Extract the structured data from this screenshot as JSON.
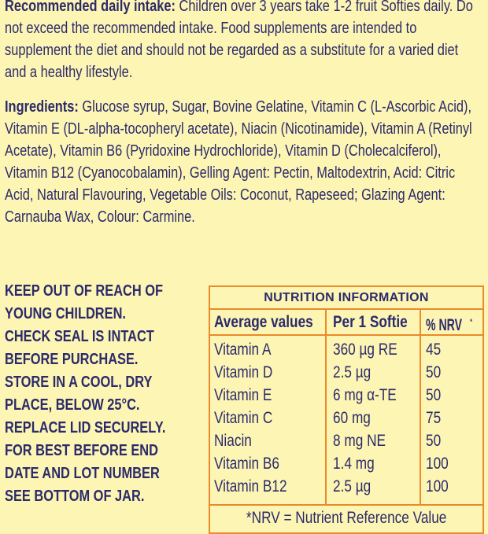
{
  "intake": {
    "label": "Recommended daily intake:",
    "text": " Children over 3 years take 1-2 fruit Softies daily. Do not exceed the recommended intake. Food supplements are intended to supplement the diet and should not be regarded as a substitute for a varied diet and a healthy lifestyle."
  },
  "ingredients": {
    "label": "Ingredients:",
    "text": " Glucose syrup, Sugar, Bovine Gelatine, Vitamin C (L-Ascorbic Acid), Vitamin E (DL-alpha-tocopheryl acetate), Niacin (Nicotinamide), Vitamin A (Retinyl Acetate), Vitamin B6 (Pyridoxine Hydrochloride), Vitamin D (Cholecalciferol), Vitamin B12 (Cyanocobalamin), Gelling Agent: Pectin, Maltodextrin, Acid: Citric Acid, Natural Flavouring, Vegetable  Oils: Coconut, Rapeseed; Glazing Agent: Carnauba Wax, Colour: Carmine."
  },
  "warnings": [
    "KEEP OUT OF REACH OF",
    "YOUNG CHILDREN.",
    "CHECK SEAL IS INTACT",
    "BEFORE PURCHASE.",
    "STORE IN A COOL, DRY",
    "PLACE, BELOW 25°C.",
    "REPLACE LID SECURELY."
  ],
  "best_before": [
    "FOR BEST BEFORE END",
    "DATE AND LOT NUMBER",
    "SEE BOTTOM OF JAR."
  ],
  "nutrition": {
    "title": "NUTRITION INFORMATION",
    "headers": [
      "Average values",
      "Per 1 Softie",
      "% NRV"
    ],
    "header_mark": "*",
    "rows": [
      {
        "name": "Vitamin A",
        "amount": "360 µg RE",
        "nrv": "45"
      },
      {
        "name": "Vitamin D",
        "amount": "2.5 µg",
        "nrv": "50"
      },
      {
        "name": "Vitamin E",
        "amount": "6 mg α-TE",
        "nrv": "50"
      },
      {
        "name": "Vitamin C",
        "amount": "60 mg",
        "nrv": "75"
      },
      {
        "name": "Niacin",
        "amount": "8 mg NE",
        "nrv": "50"
      },
      {
        "name": "Vitamin B6",
        "amount": "1.4 mg",
        "nrv": "100"
      },
      {
        "name": "Vitamin B12",
        "amount": "2.5 µg",
        "nrv": "100"
      }
    ],
    "footnote": "*NRV = Nutrient Reference Value"
  },
  "colors": {
    "background": "#fdf5b4",
    "text": "#2b2a6b",
    "border": "#e98a2b"
  }
}
